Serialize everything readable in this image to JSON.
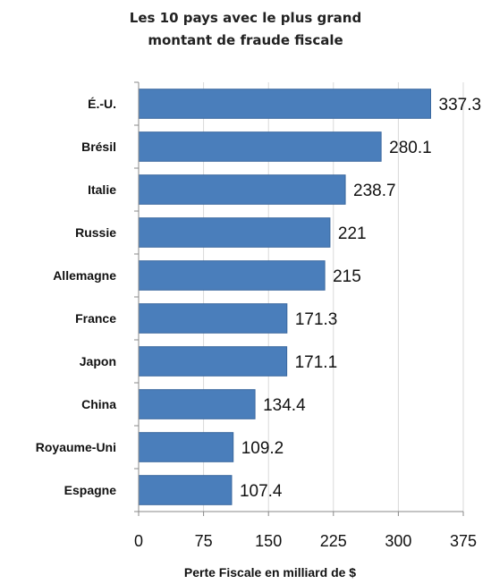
{
  "chart_data": {
    "type": "bar",
    "orientation": "horizontal",
    "title_lines": [
      "Les 10 pays avec le plus grand",
      "montant de fraude fiscale"
    ],
    "categories": [
      "É.-U.",
      "Brésil",
      "Italie",
      "Russie",
      "Allemagne",
      "France",
      "Japon",
      "China",
      "Royaume-Uni",
      "Espagne"
    ],
    "values": [
      337.3,
      280.1,
      238.7,
      221,
      215,
      171.3,
      171.1,
      134.4,
      109.2,
      107.4
    ],
    "value_labels": [
      "337.3",
      "280.1",
      "238.7",
      "221",
      "215",
      "171.3",
      "171.1",
      "134.4",
      "109.2",
      "107.4"
    ],
    "xlabel": "Perte Fiscale en milliard de $",
    "ylabel": "",
    "xlim": [
      0,
      375
    ],
    "xticks": [
      "0",
      "75",
      "150",
      "225",
      "300",
      "375"
    ],
    "grid": true,
    "legend": "none",
    "colors": {
      "bar_fill": "#4a7ebb",
      "bar_stroke": "#3a689f",
      "grid": "#d9d9d9",
      "axis": "#888888"
    }
  }
}
